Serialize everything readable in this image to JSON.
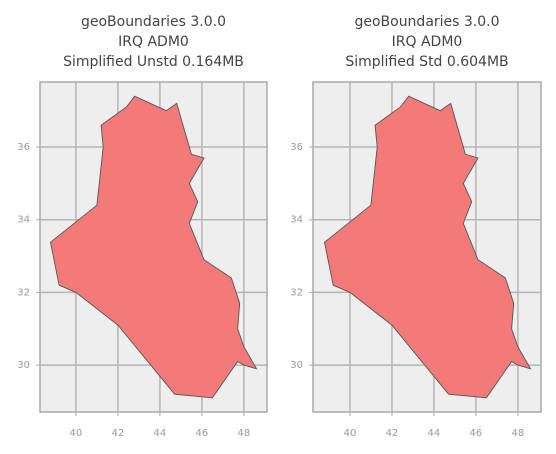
{
  "chart_data": [
    {
      "type": "map",
      "title": [
        "geoBoundaries 3.0.0",
        "IRQ ADM0",
        "Simplified Unstd 0.164MB"
      ],
      "x": [
        38.79,
        39.2,
        40.0,
        42.0,
        44.7,
        46.5,
        47.7,
        48.0,
        48.6,
        48.0,
        47.7,
        47.8,
        47.4,
        46.1,
        45.4,
        45.8,
        45.4,
        46.1,
        45.5,
        44.8,
        44.3,
        42.8,
        42.4,
        41.2,
        41.3,
        41.0,
        38.79
      ],
      "y": [
        33.38,
        32.2,
        32.0,
        31.1,
        29.2,
        29.1,
        30.1,
        30.0,
        29.9,
        30.5,
        31.0,
        31.7,
        32.4,
        32.9,
        33.9,
        34.5,
        35.0,
        35.7,
        35.8,
        37.2,
        37.0,
        37.4,
        37.1,
        36.6,
        36.0,
        34.4,
        33.38
      ],
      "color": "#f47a7a",
      "xlim": [
        38.29,
        49.1
      ],
      "ylim": [
        28.71,
        37.79
      ],
      "xticks": [
        40,
        42,
        44,
        46,
        48
      ],
      "yticks": [
        30,
        32,
        34,
        36
      ],
      "grid": true
    },
    {
      "type": "map",
      "title": [
        "geoBoundaries 3.0.0",
        "IRQ ADM0",
        "Simplified Std 0.604MB"
      ],
      "x": [
        38.79,
        39.2,
        40.0,
        42.0,
        44.7,
        46.5,
        47.7,
        48.0,
        48.6,
        48.0,
        47.7,
        47.8,
        47.4,
        46.1,
        45.4,
        45.8,
        45.4,
        46.1,
        45.5,
        44.8,
        44.3,
        42.8,
        42.4,
        41.2,
        41.3,
        41.0,
        38.79
      ],
      "y": [
        33.38,
        32.2,
        32.0,
        31.1,
        29.2,
        29.1,
        30.1,
        30.0,
        29.9,
        30.5,
        31.0,
        31.7,
        32.4,
        32.9,
        33.9,
        34.5,
        35.0,
        35.7,
        35.8,
        37.2,
        37.0,
        37.4,
        37.1,
        36.6,
        36.0,
        34.4,
        33.38
      ],
      "color": "#f47a7a",
      "xlim": [
        38.24,
        49.1
      ],
      "ylim": [
        28.71,
        37.79
      ],
      "xticks": [
        40,
        42,
        44,
        46,
        48
      ],
      "yticks": [
        30,
        32,
        34,
        36
      ],
      "grid": true
    }
  ]
}
